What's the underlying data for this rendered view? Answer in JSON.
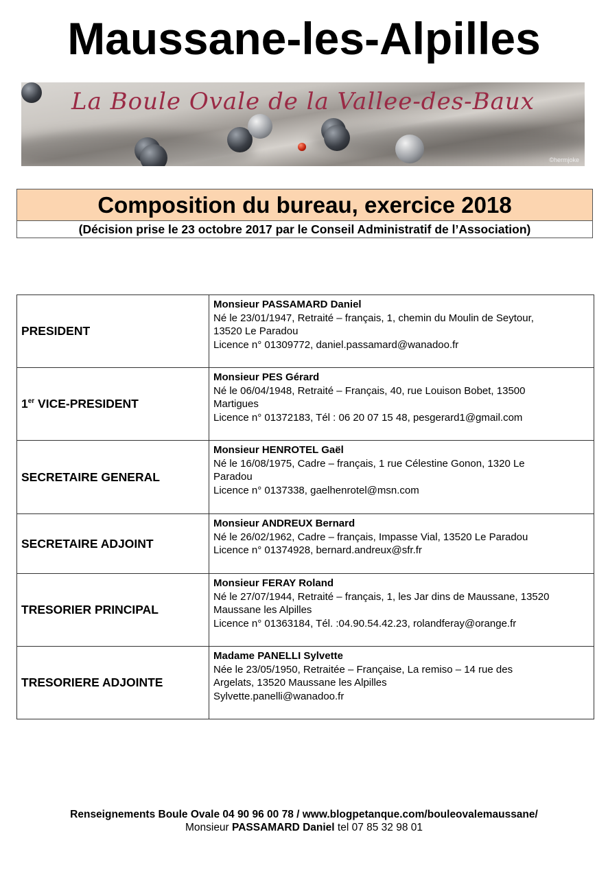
{
  "header": {
    "title": "Maussane-les-Alpilles"
  },
  "banner": {
    "text": "La Boule Ovale de la Vallee-des-Baux",
    "watermark": "©hermjoke"
  },
  "heading": {
    "title": "Composition du bureau, exercice 2018",
    "subtitle": "(Décision prise le 23 octobre 2017 par le Conseil Administratif de l’Association)",
    "background_color": "#fcd5b0"
  },
  "members": [
    {
      "role": "PRESIDENT",
      "name": "Monsieur PASSAMARD Daniel",
      "lines": [
        "Né le 23/01/1947, Retraité – français, 1, chemin du Moulin de Seytour,",
        "13520 Le Paradou",
        "Licence n° 01309772, daniel.passamard@wanadoo.fr"
      ]
    },
    {
      "role": "1",
      "role_sup": "er",
      "role_rest": " VICE-PRESIDENT",
      "name": "Monsieur PES Gérard",
      "lines": [
        "Né le 06/04/1948, Retraité – Français, 40, rue Louison Bobet, 13500",
        "Martigues",
        "Licence n° 01372183, Tél : 06 20 07 15 48, pesgerard1@gmail.com"
      ]
    },
    {
      "role": "SECRETAIRE GENERAL",
      "name": "Monsieur HENROTEL Gaël",
      "lines": [
        "Né le 16/08/1975, Cadre – français, 1 rue Célestine Gonon,  1320 Le",
        "Paradou",
        "Licence n° 0137338, gaelhenrotel@msn.com"
      ]
    },
    {
      "role": "SECRETAIRE ADJOINT",
      "name": "Monsieur ANDREUX Bernard",
      "lines": [
        "Né le 26/02/1962, Cadre – français, Impasse Vial, 13520 Le Paradou",
        "Licence n°  01374928, bernard.andreux@sfr.fr"
      ]
    },
    {
      "role": "TRESORIER PRINCIPAL",
      "name": "Monsieur FERAY Roland",
      "lines": [
        "Né le 27/07/1944, Retraité – français, 1, les Jar dins de Maussane, 13520",
        "Maussane les Alpilles",
        "Licence n° 01363184, Tél. :04.90.54.42.23, rolandferay@orange.fr"
      ]
    },
    {
      "role": "TRESORIERE ADJOINTE",
      "name": "Madame PANELLI Sylvette",
      "lines": [
        "Née le 23/05/1950, Retraitée – Française, La remiso – 14 rue des",
        "Argelats, 13520 Maussane les Alpilles",
        "Sylvette.panelli@wanadoo.fr"
      ]
    }
  ],
  "footer": {
    "line1": "Renseignements Boule Ovale 04 90 96 00 78 / www.blogpetanque.com/bouleovalemaussane/",
    "line2": "Monsieur PASSAMARD Daniel tel 07 85 32 98 01"
  }
}
